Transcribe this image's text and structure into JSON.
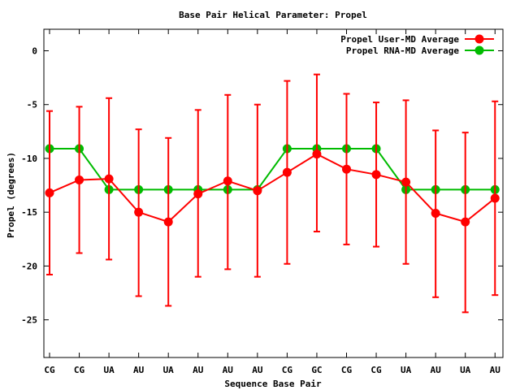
{
  "chart_data": {
    "type": "line",
    "title": "Base Pair Helical Parameter: Propel",
    "xlabel": "Sequence Base Pair",
    "ylabel": "Propel (degrees)",
    "categories": [
      "CG",
      "CG",
      "UA",
      "AU",
      "UA",
      "AU",
      "AU",
      "AU",
      "CG",
      "GC",
      "CG",
      "CG",
      "UA",
      "AU",
      "UA",
      "AU"
    ],
    "ylim": [
      -28.5,
      2
    ],
    "yticks": [
      0,
      -5,
      -10,
      -15,
      -20,
      -25
    ],
    "grid": false,
    "legend_position": "top-right",
    "series": [
      {
        "name": "Propel User-MD Average",
        "color": "#ff0000",
        "values": [
          -13.2,
          -12.0,
          -11.9,
          -15.0,
          -15.9,
          -13.3,
          -12.1,
          -13.0,
          -11.3,
          -9.6,
          -11.0,
          -11.5,
          -12.2,
          -15.1,
          -15.9,
          -13.7
        ],
        "error_low": [
          -20.8,
          -18.8,
          -19.4,
          -22.8,
          -23.7,
          -21.0,
          -20.3,
          -21.0,
          -19.8,
          -16.8,
          -18.0,
          -18.2,
          -19.8,
          -22.9,
          -24.3,
          -22.7
        ],
        "error_high": [
          -5.6,
          -5.2,
          -4.4,
          -7.3,
          -8.1,
          -5.5,
          -4.1,
          -5.0,
          -2.8,
          -2.2,
          -4.0,
          -4.8,
          -4.6,
          -7.4,
          -7.6,
          -4.7
        ]
      },
      {
        "name": "Propel RNA-MD Average",
        "color": "#00bb00",
        "values": [
          -9.1,
          -9.1,
          -12.9,
          -12.9,
          -12.9,
          -12.9,
          -12.9,
          -12.9,
          -9.1,
          -9.1,
          -9.1,
          -9.1,
          -12.9,
          -12.9,
          -12.9,
          -12.9
        ]
      }
    ]
  }
}
